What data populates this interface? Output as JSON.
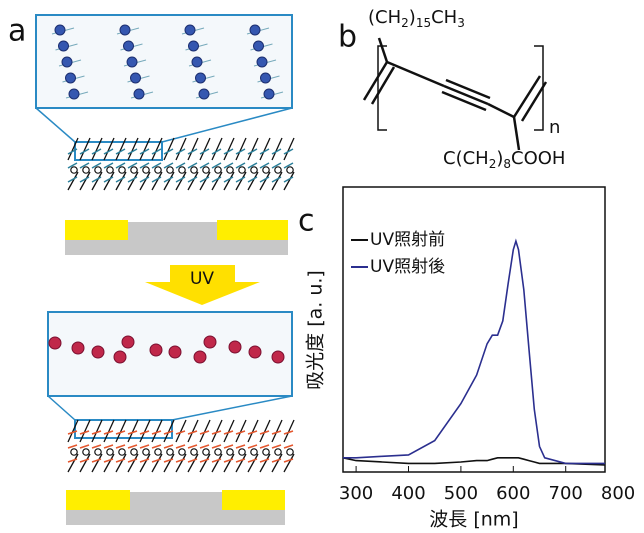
{
  "panel_a": {
    "label": "a",
    "arrow_label": "UV"
  },
  "panel_b": {
    "label": "b",
    "side_chain_top": [
      "(CH",
      "2",
      ")",
      "15",
      "CH",
      "3"
    ],
    "side_chain_bottom": [
      "C(CH",
      "2",
      ")",
      "8",
      "COOH"
    ],
    "repeat": "n"
  },
  "panel_c": {
    "label": "c"
  },
  "chart_data": {
    "type": "line",
    "x_label": "波長 [nm]",
    "y_label": "吸光度 [a. u.]",
    "x": [
      275,
      300,
      350,
      400,
      450,
      500,
      530,
      550,
      560,
      570,
      580,
      590,
      600,
      605,
      610,
      620,
      630,
      640,
      650,
      660,
      700,
      775
    ],
    "series": [
      {
        "name": "UV照射前",
        "color": "#111111",
        "values": [
          0.05,
          0.04,
          0.035,
          0.03,
          0.03,
          0.035,
          0.04,
          0.04,
          0.045,
          0.05,
          0.05,
          0.05,
          0.05,
          0.05,
          0.05,
          0.045,
          0.04,
          0.035,
          0.03,
          0.03,
          0.03,
          0.025
        ]
      },
      {
        "name": "UV照射後",
        "color": "#2b2f8f",
        "values": [
          0.05,
          0.05,
          0.055,
          0.06,
          0.11,
          0.24,
          0.34,
          0.45,
          0.48,
          0.48,
          0.53,
          0.66,
          0.78,
          0.81,
          0.78,
          0.64,
          0.43,
          0.22,
          0.09,
          0.05,
          0.03,
          0.03
        ]
      }
    ],
    "xlim": [
      275,
      775
    ],
    "xticks": [
      300,
      400,
      500,
      600,
      700,
      800
    ],
    "ylim": [
      0,
      1
    ],
    "legend": "upper-left"
  }
}
